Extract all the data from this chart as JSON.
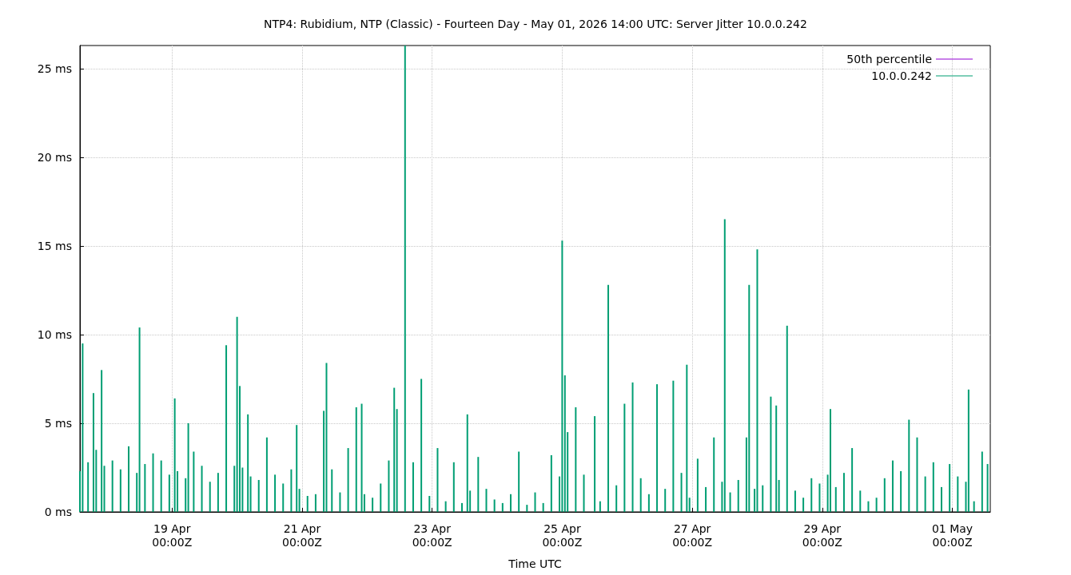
{
  "chart_data": {
    "type": "bar",
    "title": "NTP4: Rubidium, NTP (Classic) - Fourteen Day - May 01, 2026 14:00 UTC: Server Jitter 10.0.0.242",
    "xlabel": "Time UTC",
    "xlim": [
      "2026-04-17T14:00",
      "2026-05-01T14:00"
    ],
    "xticks": [
      {
        "value": "2026-04-19T00:00",
        "label": "19 Apr\n00:00Z"
      },
      {
        "value": "2026-04-21T00:00",
        "label": "21 Apr\n00:00Z"
      },
      {
        "value": "2026-04-23T00:00",
        "label": "23 Apr\n00:00Z"
      },
      {
        "value": "2026-04-25T00:00",
        "label": "25 Apr\n00:00Z"
      },
      {
        "value": "2026-04-27T00:00",
        "label": "27 Apr\n00:00Z"
      },
      {
        "value": "2026-04-29T00:00",
        "label": "29 Apr\n00:00Z"
      },
      {
        "value": "2026-05-01T00:00",
        "label": "01 May\n00:00Z"
      }
    ],
    "ylim": [
      0,
      26.3
    ],
    "yticks": [
      {
        "value": 0,
        "label": "0 ms"
      },
      {
        "value": 5,
        "label": "5 ms"
      },
      {
        "value": 10,
        "label": "10 ms"
      },
      {
        "value": 15,
        "label": "15 ms"
      },
      {
        "value": 20,
        "label": "20 ms"
      },
      {
        "value": 25,
        "label": "25 ms"
      }
    ],
    "grid": true,
    "legend": "top right",
    "series": [
      {
        "name": "50th percentile",
        "color": "#9400d3"
      },
      {
        "name": "10.0.0.242",
        "color": "#009e73",
        "x": [
          "2026-04-17T14:00",
          "2026-04-17T15:00",
          "2026-04-17T17:00",
          "2026-04-17T19:00",
          "2026-04-17T20:00",
          "2026-04-17T22:00",
          "2026-04-17T23:00",
          "2026-04-18T02:00",
          "2026-04-18T05:00",
          "2026-04-18T08:00",
          "2026-04-18T11:00",
          "2026-04-18T12:00",
          "2026-04-18T14:00",
          "2026-04-18T17:00",
          "2026-04-18T20:00",
          "2026-04-18T23:00",
          "2026-04-19T01:00",
          "2026-04-19T02:00",
          "2026-04-19T05:00",
          "2026-04-19T06:00",
          "2026-04-19T08:00",
          "2026-04-19T11:00",
          "2026-04-19T14:00",
          "2026-04-19T17:00",
          "2026-04-19T20:00",
          "2026-04-19T23:00",
          "2026-04-20T00:00",
          "2026-04-20T01:00",
          "2026-04-20T02:00",
          "2026-04-20T04:00",
          "2026-04-20T05:00",
          "2026-04-20T08:00",
          "2026-04-20T11:00",
          "2026-04-20T14:00",
          "2026-04-20T17:00",
          "2026-04-20T20:00",
          "2026-04-20T22:00",
          "2026-04-20T23:00",
          "2026-04-21T02:00",
          "2026-04-21T05:00",
          "2026-04-21T08:00",
          "2026-04-21T09:00",
          "2026-04-21T11:00",
          "2026-04-21T14:00",
          "2026-04-21T17:00",
          "2026-04-21T20:00",
          "2026-04-21T22:00",
          "2026-04-21T23:00",
          "2026-04-22T02:00",
          "2026-04-22T05:00",
          "2026-04-22T08:00",
          "2026-04-22T10:00",
          "2026-04-22T11:00",
          "2026-04-22T14:00",
          "2026-04-22T17:00",
          "2026-04-22T20:00",
          "2026-04-22T23:00",
          "2026-04-23T02:00",
          "2026-04-23T05:00",
          "2026-04-23T08:00",
          "2026-04-23T11:00",
          "2026-04-23T13:00",
          "2026-04-23T14:00",
          "2026-04-23T17:00",
          "2026-04-23T20:00",
          "2026-04-23T23:00",
          "2026-04-24T02:00",
          "2026-04-24T05:00",
          "2026-04-24T08:00",
          "2026-04-24T11:00",
          "2026-04-24T14:00",
          "2026-04-24T17:00",
          "2026-04-24T20:00",
          "2026-04-24T23:00",
          "2026-04-25T00:00",
          "2026-04-25T01:00",
          "2026-04-25T02:00",
          "2026-04-25T05:00",
          "2026-04-25T08:00",
          "2026-04-25T12:00",
          "2026-04-25T14:00",
          "2026-04-25T17:00",
          "2026-04-25T20:00",
          "2026-04-25T23:00",
          "2026-04-26T02:00",
          "2026-04-26T05:00",
          "2026-04-26T08:00",
          "2026-04-26T11:00",
          "2026-04-26T14:00",
          "2026-04-26T17:00",
          "2026-04-26T20:00",
          "2026-04-26T22:00",
          "2026-04-26T23:00",
          "2026-04-27T02:00",
          "2026-04-27T05:00",
          "2026-04-27T08:00",
          "2026-04-27T11:00",
          "2026-04-27T12:00",
          "2026-04-27T14:00",
          "2026-04-27T17:00",
          "2026-04-27T20:00",
          "2026-04-27T21:00",
          "2026-04-27T23:00",
          "2026-04-28T00:00",
          "2026-04-28T02:00",
          "2026-04-28T05:00",
          "2026-04-28T07:00",
          "2026-04-28T08:00",
          "2026-04-28T11:00",
          "2026-04-28T14:00",
          "2026-04-28T17:00",
          "2026-04-28T20:00",
          "2026-04-28T23:00",
          "2026-04-29T02:00",
          "2026-04-29T03:00",
          "2026-04-29T05:00",
          "2026-04-29T08:00",
          "2026-04-29T11:00",
          "2026-04-29T14:00",
          "2026-04-29T17:00",
          "2026-04-29T20:00",
          "2026-04-29T23:00",
          "2026-04-30T02:00",
          "2026-04-30T05:00",
          "2026-04-30T08:00",
          "2026-04-30T11:00",
          "2026-04-30T14:00",
          "2026-04-30T17:00",
          "2026-04-30T20:00",
          "2026-04-30T23:00",
          "2026-05-01T02:00",
          "2026-05-01T05:00",
          "2026-05-01T06:00",
          "2026-05-01T08:00",
          "2026-05-01T11:00",
          "2026-05-01T13:00"
        ],
        "values": [
          2.3,
          9.5,
          2.8,
          6.7,
          3.5,
          8.0,
          2.6,
          2.9,
          2.4,
          3.7,
          2.2,
          10.4,
          2.7,
          3.3,
          2.9,
          2.1,
          6.4,
          2.3,
          1.9,
          5.0,
          3.4,
          2.6,
          1.7,
          2.2,
          9.4,
          2.6,
          11.0,
          7.1,
          2.5,
          5.5,
          2.0,
          1.8,
          4.2,
          2.1,
          1.6,
          2.4,
          4.9,
          1.3,
          0.9,
          1.0,
          5.7,
          8.4,
          2.4,
          1.1,
          3.6,
          5.9,
          6.1,
          1.0,
          0.8,
          1.6,
          2.9,
          7.0,
          5.8,
          26.3,
          2.8,
          7.5,
          0.9,
          3.6,
          0.6,
          2.8,
          0.5,
          5.5,
          1.2,
          3.1,
          1.3,
          0.7,
          0.5,
          1.0,
          3.4,
          0.4,
          1.1,
          0.5,
          3.2,
          2.0,
          15.3,
          7.7,
          4.5,
          5.9,
          2.1,
          5.4,
          0.6,
          12.8,
          1.5,
          6.1,
          7.3,
          1.9,
          1.0,
          7.2,
          1.3,
          7.4,
          2.2,
          8.3,
          0.8,
          3.0,
          1.4,
          4.2,
          1.7,
          16.5,
          1.1,
          1.8,
          4.2,
          12.8,
          1.3,
          14.8,
          1.5,
          6.5,
          6.0,
          1.8,
          10.5,
          1.2,
          0.8,
          1.9,
          1.6,
          2.1,
          5.8,
          1.4,
          2.2,
          3.6,
          1.2,
          0.6,
          0.8,
          1.9,
          2.9,
          2.3,
          5.2,
          4.2,
          2.0,
          2.8,
          1.4,
          2.7,
          2.0,
          1.7,
          6.9,
          0.6,
          3.4,
          2.7
        ]
      }
    ]
  }
}
